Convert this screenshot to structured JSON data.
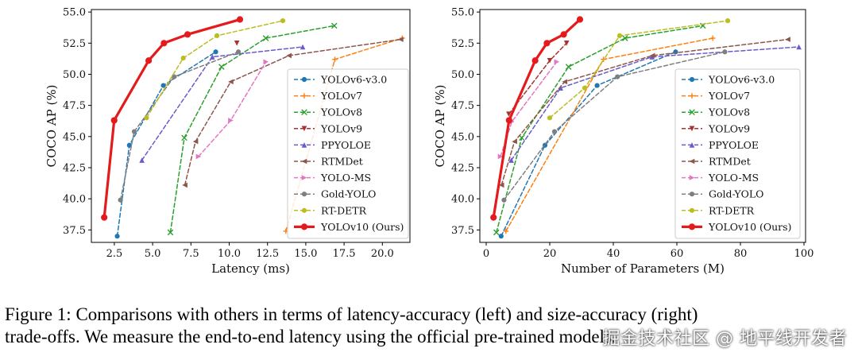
{
  "caption": {
    "line1": "Figure 1: Comparisons with others in terms of latency-accuracy (left) and size-accuracy (right)",
    "line2": "trade-offs. We measure the end-to-end latency using the official pre-trained models."
  },
  "watermark": "掘金技术社区 @ 地平线开发者",
  "chart_data": [
    {
      "type": "line",
      "title": "",
      "xlabel": "Latency (ms)",
      "ylabel": "COCO AP (%)",
      "xlim": [
        1.0,
        21.8
      ],
      "ylim": [
        36.5,
        55.2
      ],
      "xticks": [
        2.5,
        5.0,
        7.5,
        10.0,
        12.5,
        15.0,
        17.5,
        20.0
      ],
      "xtick_labels": [
        "2.5",
        "5.0",
        "7.5",
        "10.0",
        "12.5",
        "15.0",
        "17.5",
        "20.0"
      ],
      "yticks": [
        37.5,
        40.0,
        42.5,
        45.0,
        47.5,
        50.0,
        52.5,
        55.0
      ],
      "ytick_labels": [
        "37.5",
        "40.0",
        "42.5",
        "45.0",
        "47.5",
        "50.0",
        "52.5",
        "55.0"
      ],
      "legend": "right",
      "series": [
        {
          "name": "YOLOv6-v3.0",
          "color": "#1f77b4",
          "marker": "dot",
          "x": [
            2.69,
            3.48,
            5.7,
            9.12
          ],
          "y": [
            37.0,
            44.3,
            49.1,
            51.8
          ]
        },
        {
          "name": "YOLOv7",
          "color": "#ff7f0e",
          "marker": "plus",
          "x": [
            13.7,
            16.9,
            21.3
          ],
          "y": [
            37.4,
            51.2,
            52.9
          ]
        },
        {
          "name": "YOLOv8",
          "color": "#2ca02c",
          "marker": "x",
          "x": [
            6.16,
            7.07,
            9.5,
            12.39,
            16.86
          ],
          "y": [
            37.3,
            44.9,
            50.6,
            52.9,
            53.9
          ]
        },
        {
          "name": "YOLOv9",
          "color": "#a83232",
          "marker": "tri-down",
          "x": [
            10.5
          ],
          "y": [
            52.5
          ]
        },
        {
          "name": "PPYOLOE",
          "color": "#6a5acd",
          "marker": "tri-up",
          "x": [
            4.3,
            8.9,
            14.8
          ],
          "y": [
            43.1,
            51.4,
            52.2
          ]
        },
        {
          "name": "RTMDet",
          "color": "#8c564b",
          "marker": "tri-left",
          "x": [
            7.1,
            7.8,
            10.1,
            13.9,
            21.2
          ],
          "y": [
            41.1,
            44.6,
            49.4,
            51.5,
            52.8
          ]
        },
        {
          "name": "YOLO-MS",
          "color": "#e377c2",
          "marker": "tri-right",
          "x": [
            8.0,
            10.1,
            12.4
          ],
          "y": [
            43.4,
            46.3,
            51.0
          ]
        },
        {
          "name": "Gold-YOLO",
          "color": "#7f7f7f",
          "marker": "dot",
          "x": [
            2.9,
            3.8,
            6.4,
            10.6
          ],
          "y": [
            39.9,
            45.4,
            49.8,
            51.8
          ]
        },
        {
          "name": "RT-DETR",
          "color": "#bcbd22",
          "marker": "dot",
          "x": [
            4.6,
            7.0,
            9.2,
            13.5
          ],
          "y": [
            46.5,
            51.3,
            53.1,
            54.3
          ]
        },
        {
          "name": "YOLOv10 (Ours)",
          "color": "#e41a1c",
          "marker": "dot",
          "bold": true,
          "x": [
            1.84,
            2.49,
            4.74,
            5.74,
            7.28,
            10.7
          ],
          "y": [
            38.5,
            46.3,
            51.1,
            52.5,
            53.2,
            54.4
          ]
        }
      ]
    },
    {
      "type": "line",
      "title": "",
      "xlabel": "Number of Parameters (M)",
      "ylabel": "COCO AP (%)",
      "xlim": [
        -2.0,
        100.5
      ],
      "ylim": [
        36.5,
        55.2
      ],
      "xticks": [
        0,
        20,
        40,
        60,
        80,
        100
      ],
      "xtick_labels": [
        "0",
        "20",
        "40",
        "60",
        "80",
        "100"
      ],
      "yticks": [
        37.5,
        40.0,
        42.5,
        45.0,
        47.5,
        50.0,
        52.5,
        55.0
      ],
      "ytick_labels": [
        "37.5",
        "40.0",
        "42.5",
        "45.0",
        "47.5",
        "50.0",
        "52.5",
        "55.0"
      ],
      "legend": "right",
      "series": [
        {
          "name": "YOLOv6-v3.0",
          "color": "#1f77b4",
          "marker": "dot",
          "x": [
            4.7,
            18.5,
            34.9,
            59.6
          ],
          "y": [
            37.0,
            44.3,
            49.1,
            51.8
          ]
        },
        {
          "name": "YOLOv7",
          "color": "#ff7f0e",
          "marker": "plus",
          "x": [
            6.2,
            36.9,
            71.3
          ],
          "y": [
            37.4,
            51.2,
            52.9
          ]
        },
        {
          "name": "YOLOv8",
          "color": "#2ca02c",
          "marker": "x",
          "x": [
            3.2,
            11.2,
            25.9,
            43.7,
            68.2
          ],
          "y": [
            37.3,
            44.9,
            50.6,
            52.9,
            53.9
          ]
        },
        {
          "name": "YOLOv9",
          "color": "#a83232",
          "marker": "tri-down",
          "x": [
            7.1,
            20.0,
            25.3
          ],
          "y": [
            46.8,
            51.1,
            52.5
          ]
        },
        {
          "name": "PPYOLOE",
          "color": "#6a5acd",
          "marker": "tri-up",
          "x": [
            7.9,
            23.4,
            52.2,
            98.4
          ],
          "y": [
            43.1,
            48.9,
            51.4,
            52.2
          ]
        },
        {
          "name": "RTMDet",
          "color": "#8c564b",
          "marker": "tri-left",
          "x": [
            4.8,
            8.9,
            24.7,
            52.3,
            94.9
          ],
          "y": [
            41.1,
            44.6,
            49.4,
            51.5,
            52.8
          ]
        },
        {
          "name": "YOLO-MS",
          "color": "#e377c2",
          "marker": "tri-right",
          "x": [
            4.5,
            8.1,
            22.2
          ],
          "y": [
            43.4,
            46.2,
            51.0
          ]
        },
        {
          "name": "Gold-YOLO",
          "color": "#7f7f7f",
          "marker": "dot",
          "x": [
            5.6,
            21.5,
            41.3,
            75.1
          ],
          "y": [
            39.9,
            45.4,
            49.8,
            51.8
          ]
        },
        {
          "name": "RT-DETR",
          "color": "#bcbd22",
          "marker": "dot",
          "x": [
            20.0,
            31.0,
            42.0,
            76.0
          ],
          "y": [
            46.5,
            48.9,
            53.1,
            54.3
          ]
        },
        {
          "name": "YOLOv10 (Ours)",
          "color": "#e41a1c",
          "marker": "dot",
          "bold": true,
          "x": [
            2.3,
            7.2,
            15.4,
            19.1,
            24.4,
            29.5
          ],
          "y": [
            38.5,
            46.3,
            51.1,
            52.5,
            53.2,
            54.4
          ]
        }
      ]
    }
  ]
}
